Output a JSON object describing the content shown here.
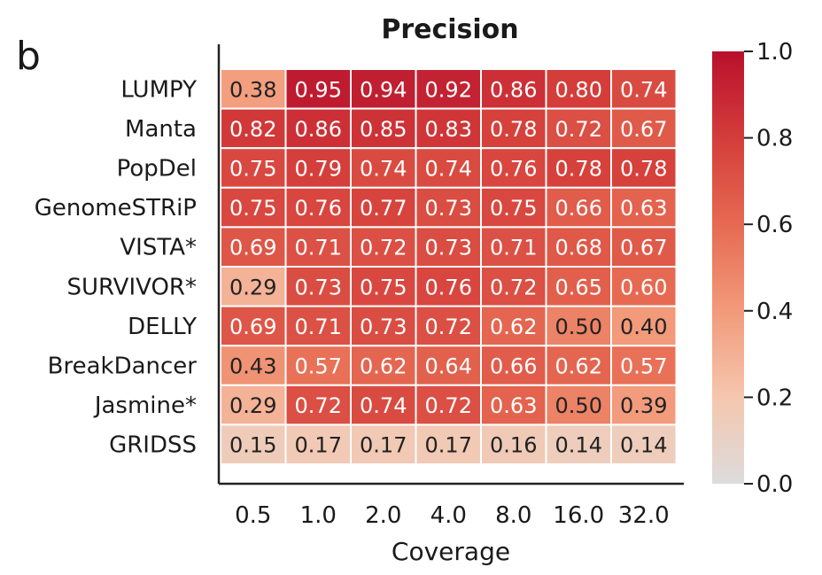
{
  "panel_label": "b",
  "chart_data": {
    "type": "heatmap",
    "title": "Precision",
    "xlabel": "Coverage",
    "ylabel": "",
    "x": [
      "0.5",
      "1.0",
      "2.0",
      "4.0",
      "8.0",
      "16.0",
      "32.0"
    ],
    "y": [
      "LUMPY",
      "Manta",
      "PopDel",
      "GenomeSTRiP",
      "VISTA*",
      "SURVIVOR*",
      "DELLY",
      "BreakDancer",
      "Jasmine*",
      "GRIDSS"
    ],
    "values": [
      [
        0.38,
        0.95,
        0.94,
        0.92,
        0.86,
        0.8,
        0.74
      ],
      [
        0.82,
        0.86,
        0.85,
        0.83,
        0.78,
        0.72,
        0.67
      ],
      [
        0.75,
        0.79,
        0.74,
        0.74,
        0.76,
        0.78,
        0.78
      ],
      [
        0.75,
        0.76,
        0.77,
        0.73,
        0.75,
        0.66,
        0.63
      ],
      [
        0.69,
        0.71,
        0.72,
        0.73,
        0.71,
        0.68,
        0.67
      ],
      [
        0.29,
        0.73,
        0.75,
        0.76,
        0.72,
        0.65,
        0.6
      ],
      [
        0.69,
        0.71,
        0.73,
        0.72,
        0.62,
        0.5,
        0.4
      ],
      [
        0.43,
        0.57,
        0.62,
        0.64,
        0.66,
        0.62,
        0.57
      ],
      [
        0.29,
        0.72,
        0.74,
        0.72,
        0.63,
        0.5,
        0.39
      ],
      [
        0.15,
        0.17,
        0.17,
        0.17,
        0.16,
        0.14,
        0.14
      ]
    ],
    "value_format": "2 decimals",
    "colorbar": {
      "range": [
        0.0,
        1.0
      ],
      "ticks": [
        "0.0",
        "0.2",
        "0.4",
        "0.6",
        "0.8",
        "1.0"
      ],
      "colormap": "light gray to red",
      "colors": [
        "#dcdcdc",
        "#f5c6ae",
        "#f29a7a",
        "#e66a52",
        "#d43d3a",
        "#b8102d"
      ]
    },
    "grid": false
  }
}
